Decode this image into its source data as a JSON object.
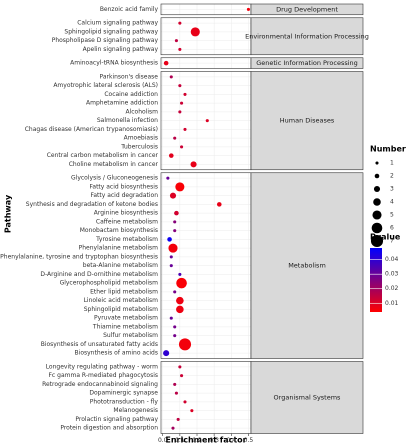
{
  "chart_data": {
    "type": "scatter",
    "x_label": "Enrichment factor",
    "y_label": "Pathway",
    "xlim": [
      -0.01,
      0.515
    ],
    "xticks": [
      {
        "value": 0,
        "label": "0.0"
      },
      0.1,
      0.2,
      0.3,
      0.4,
      0.5
    ],
    "grid": true,
    "size_title": "Number",
    "size_legend": [
      1,
      2,
      3,
      4,
      5,
      6,
      7
    ],
    "color_title": "Pvalue",
    "color_low": "#ff0000",
    "color_high": "#0000ff",
    "clim": [
      0.004,
      0.048
    ],
    "cticks": [
      0.01,
      0.02,
      0.03,
      0.04
    ],
    "facets": [
      {
        "name": "Drug Development",
        "categories": [
          "Benzoic acid family"
        ],
        "x": [
          0.5
        ],
        "size": [
          1
        ],
        "pvalue": [
          0.006
        ]
      },
      {
        "name": "Environmental Information Processing",
        "categories": [
          "Calcium signaling pathway",
          "Sphingolipid signaling pathway",
          "Phospholipase D signaling pathway",
          "Apelin signaling pathway"
        ],
        "x": [
          0.1,
          0.19,
          0.08,
          0.1
        ],
        "size": [
          1,
          5,
          1,
          1
        ],
        "pvalue": [
          0.012,
          0.008,
          0.015,
          0.012
        ]
      },
      {
        "name": "Genetic Information Processing",
        "categories": [
          "Aminoacyl-tRNA biosynthesis"
        ],
        "x": [
          0.02
        ],
        "size": [
          2
        ],
        "pvalue": [
          0.008
        ]
      },
      {
        "name": "Human Diseases",
        "categories": [
          "Parkinson's disease",
          "Amyotrophic lateral sclerosis (ALS)",
          "Cocaine addiction",
          "Amphetamine addiction",
          "Alcoholism",
          "Salmonella infection",
          "Chagas disease (American trypanosomiasis)",
          "Amoebiasis",
          "Tuberculosis",
          "Central carbon metabolism in cancer",
          "Choline metabolism in cancer"
        ],
        "x": [
          0.05,
          0.1,
          0.13,
          0.11,
          0.1,
          0.26,
          0.13,
          0.07,
          0.11,
          0.05,
          0.18
        ],
        "size": [
          1,
          1,
          1,
          1,
          1,
          1,
          1,
          1,
          1,
          2,
          3
        ],
        "pvalue": [
          0.018,
          0.014,
          0.012,
          0.013,
          0.014,
          0.01,
          0.012,
          0.016,
          0.013,
          0.009,
          0.008
        ]
      },
      {
        "name": "Metabolism",
        "categories": [
          "Glycolysis / Gluconeogenesis",
          "Fatty acid biosynthesis",
          "Fatty acid degradation",
          "Synthesis and degradation of ketone bodies",
          "Arginine biosynthesis",
          "Caffeine metabolism",
          "Monobactam biosynthesis",
          "Tyrosine metabolism",
          "Phenylalanine metabolism",
          "Phenylalanine, tyrosine and tryptophan biosynthesis",
          "beta-Alanine metabolism",
          "D-Arginine and D-ornithine metabolism",
          "Glycerophospholipid metabolism",
          "Ether lipid metabolism",
          "Linoleic acid metabolism",
          "Sphingolipid metabolism",
          "Pyruvate metabolism",
          "Thiamine metabolism",
          "Sulfur metabolism",
          "Biosynthesis of unsaturated fatty acids",
          "Biosynthesis of amino acids"
        ],
        "x": [
          0.03,
          0.1,
          0.06,
          0.33,
          0.08,
          0.07,
          0.07,
          0.04,
          0.06,
          0.05,
          0.05,
          0.1,
          0.11,
          0.07,
          0.1,
          0.1,
          0.05,
          0.07,
          0.07,
          0.13,
          0.02
        ],
        "size": [
          1,
          5,
          3,
          2,
          2,
          1,
          1,
          2,
          5,
          1,
          1,
          1,
          6,
          1,
          4,
          4,
          1,
          1,
          1,
          7,
          3
        ],
        "pvalue": [
          0.03,
          0.005,
          0.01,
          0.008,
          0.012,
          0.025,
          0.025,
          0.046,
          0.006,
          0.03,
          0.03,
          0.035,
          0.005,
          0.028,
          0.007,
          0.007,
          0.03,
          0.028,
          0.028,
          0.006,
          0.04
        ]
      },
      {
        "name": "Organismal Systems",
        "categories": [
          "Longevity regulating pathway - worm",
          "Fc gamma R-mediated phagocytosis",
          "Retrograde endocannabinoid signaling",
          "Dopaminergic synapse",
          "Phototransduction - fly",
          "Melanogenesis",
          "Prolactin signaling pathway",
          "Protein digestion and absorption"
        ],
        "x": [
          0.1,
          0.11,
          0.07,
          0.08,
          0.13,
          0.17,
          0.09,
          0.06
        ],
        "size": [
          1,
          1,
          1,
          1,
          1,
          1,
          1,
          1
        ],
        "pvalue": [
          0.014,
          0.013,
          0.018,
          0.016,
          0.012,
          0.01,
          0.015,
          0.02
        ]
      }
    ]
  }
}
